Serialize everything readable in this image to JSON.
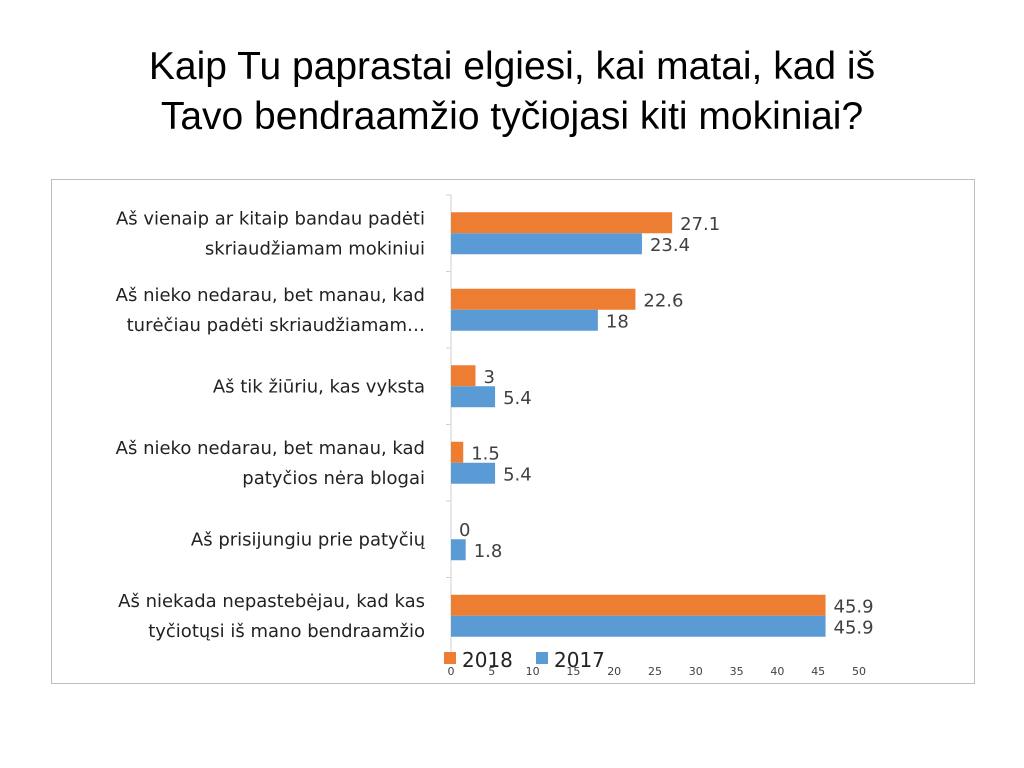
{
  "slide": {
    "title_line1": "Kaip Tu paprastai elgiesi, kai matai, kad iš",
    "title_line2": "Tavo bendraamžio tyčiojasi kiti mokiniai?"
  },
  "chart_data": {
    "type": "bar",
    "orientation": "horizontal",
    "categories": [
      [
        "Aš vienaip ar kitaip bandau padėti",
        "skriaudžiamam mokiniui"
      ],
      [
        "Aš nieko nedarau, bet manau, kad",
        "turėčiau padėti skriaudžiamam…"
      ],
      [
        "Aš tik žiūriu, kas vyksta"
      ],
      [
        "Aš nieko nedarau, bet manau, kad",
        "patyčios nėra blogai"
      ],
      [
        "Aš prisijungiu prie patyčių"
      ],
      [
        "Aš niekada nepastebėjau, kad kas",
        "tyčiotųsi iš mano bendraamžio"
      ]
    ],
    "series": [
      {
        "name": "2018",
        "color": "#ED7D31",
        "values": [
          27.1,
          22.6,
          3,
          1.5,
          0,
          45.9
        ],
        "labels": [
          "27.1",
          "22.6",
          "3",
          "1.5",
          "0",
          "45.9"
        ]
      },
      {
        "name": "2017",
        "color": "#5B9BD5",
        "values": [
          23.4,
          18,
          5.4,
          5.4,
          1.8,
          45.9
        ],
        "labels": [
          "23.4",
          "18",
          "5.4",
          "5.4",
          "1.8",
          "45.9"
        ]
      }
    ],
    "x_axis": {
      "min": 0,
      "max": 50,
      "step": 5,
      "ticks": [
        "0",
        "5",
        "10",
        "15",
        "20",
        "25",
        "30",
        "35",
        "40",
        "45",
        "50"
      ]
    },
    "grid": false,
    "legend_position": "bottom-left"
  }
}
